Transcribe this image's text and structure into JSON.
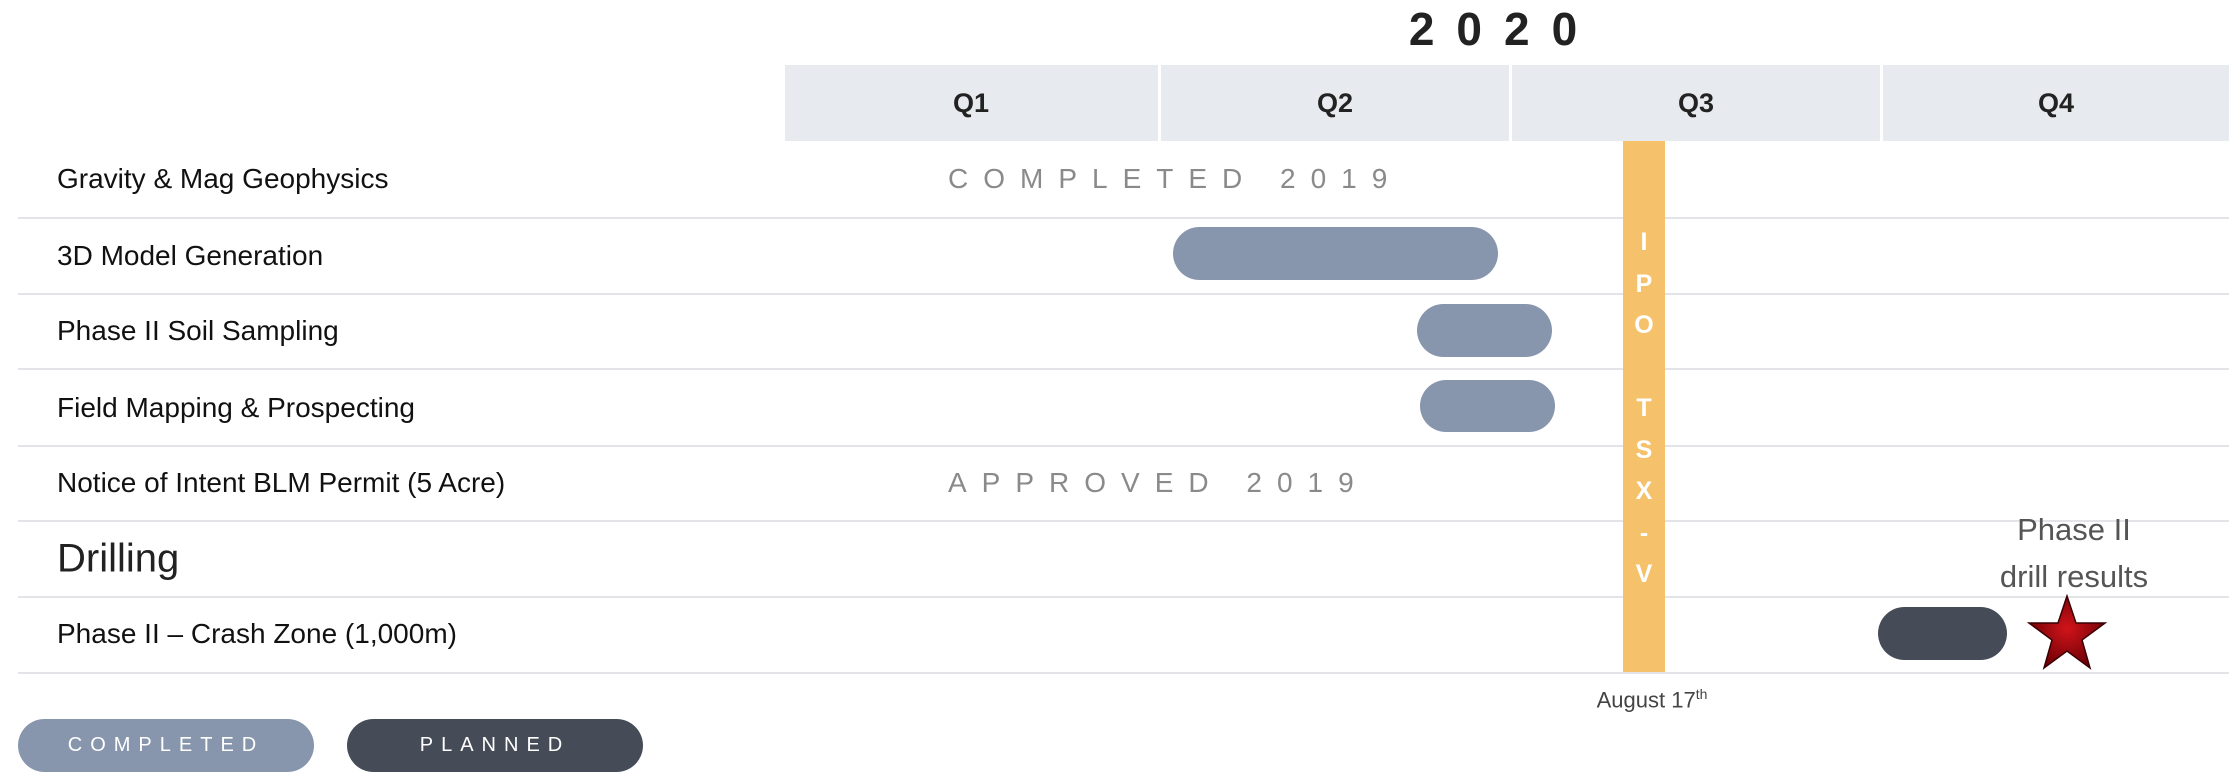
{
  "header": {
    "year": "2020",
    "quarters": [
      "Q1",
      "Q2",
      "Q3",
      "Q4"
    ]
  },
  "rows": [
    {
      "label": "Gravity & Mag Geophysics",
      "note": "COMPLETED 2019"
    },
    {
      "label": "3D Model Generation"
    },
    {
      "label": "Phase II Soil Sampling"
    },
    {
      "label": "Field Mapping & Prospecting"
    },
    {
      "label": "Notice of Intent BLM Permit (5 Acre)",
      "note": "APPROVED 2019"
    },
    {
      "label": "Drilling"
    },
    {
      "label": "Phase II – Crash Zone (1,000m)"
    }
  ],
  "milestone": {
    "label": "IPO TSX-V",
    "date": "August 17",
    "date_suffix": "th"
  },
  "annotation": {
    "lines": [
      "Phase II",
      "drill results"
    ]
  },
  "legend": {
    "completed": "COMPLETED",
    "planned": "PLANNED"
  }
}
